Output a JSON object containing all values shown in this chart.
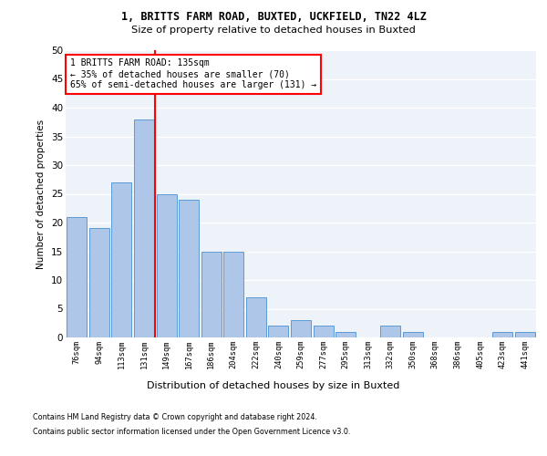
{
  "title1": "1, BRITTS FARM ROAD, BUXTED, UCKFIELD, TN22 4LZ",
  "title2": "Size of property relative to detached houses in Buxted",
  "xlabel": "Distribution of detached houses by size in Buxted",
  "ylabel": "Number of detached properties",
  "categories": [
    "76sqm",
    "94sqm",
    "113sqm",
    "131sqm",
    "149sqm",
    "167sqm",
    "186sqm",
    "204sqm",
    "222sqm",
    "240sqm",
    "259sqm",
    "277sqm",
    "295sqm",
    "313sqm",
    "332sqm",
    "350sqm",
    "368sqm",
    "386sqm",
    "405sqm",
    "423sqm",
    "441sqm"
  ],
  "values": [
    21,
    19,
    27,
    38,
    25,
    24,
    15,
    15,
    7,
    2,
    3,
    2,
    1,
    0,
    2,
    1,
    0,
    0,
    0,
    1,
    1
  ],
  "bar_color": "#aec6e8",
  "bar_edge_color": "#5b9bd5",
  "vline_color": "red",
  "annotation_line1": "1 BRITTS FARM ROAD: 135sqm",
  "annotation_line2": "← 35% of detached houses are smaller (70)",
  "annotation_line3": "65% of semi-detached houses are larger (131) →",
  "annotation_box_color": "red",
  "annotation_box_bg": "white",
  "footnote1": "Contains HM Land Registry data © Crown copyright and database right 2024.",
  "footnote2": "Contains public sector information licensed under the Open Government Licence v3.0.",
  "ylim": [
    0,
    50
  ],
  "yticks": [
    0,
    5,
    10,
    15,
    20,
    25,
    30,
    35,
    40,
    45,
    50
  ],
  "background_color": "#eef2f9",
  "grid_color": "white"
}
